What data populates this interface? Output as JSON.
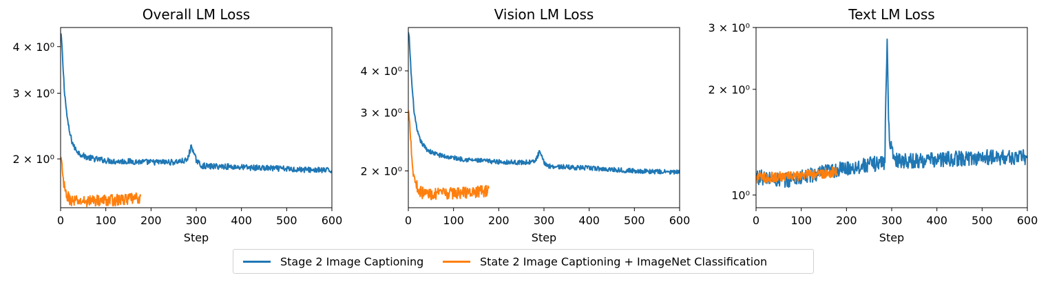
{
  "colors": {
    "stage2": "#1f77b4",
    "stage2_imagenet": "#ff7f0e",
    "axis": "#000000",
    "legend_border": "#d0d0d0"
  },
  "legend": {
    "position": "bottom-center",
    "entries": [
      {
        "label": "Stage 2 Image Captioning",
        "color": "#1f77b4"
      },
      {
        "label": "State 2 Image Captioning + ImageNet Classification",
        "color": "#ff7f0e"
      }
    ]
  },
  "chart_data": [
    {
      "type": "line",
      "title": "Overall LM Loss",
      "xlabel": "Step",
      "ylabel": "",
      "yscale": "log",
      "xlim": [
        0,
        600
      ],
      "ylim": [
        1.48,
        4.5
      ],
      "xticks": [
        0,
        100,
        200,
        300,
        400,
        500,
        600
      ],
      "xtick_labels": [
        "0",
        "100",
        "200",
        "300",
        "400",
        "500",
        "600"
      ],
      "yticks": [
        2,
        3,
        4
      ],
      "ytick_labels": [
        "2 × 10⁰",
        "3 × 10⁰",
        "4 × 10⁰"
      ],
      "series": [
        {
          "name": "Stage 2 Image Captioning",
          "color": "#1f77b4",
          "noise": 0.018,
          "x": [
            0,
            2,
            5,
            8,
            12,
            16,
            20,
            25,
            30,
            40,
            50,
            60,
            75,
            90,
            100,
            120,
            150,
            200,
            250,
            280,
            290,
            295,
            300,
            310,
            330,
            360,
            400,
            450,
            500,
            550,
            600
          ],
          "y": [
            4.3,
            4.2,
            3.6,
            3.1,
            2.75,
            2.5,
            2.35,
            2.23,
            2.15,
            2.08,
            2.04,
            2.02,
            2.0,
            1.99,
            1.98,
            1.97,
            1.97,
            1.96,
            1.96,
            1.98,
            2.18,
            2.05,
            1.99,
            1.92,
            1.91,
            1.91,
            1.9,
            1.89,
            1.88,
            1.87,
            1.86
          ]
        },
        {
          "name": "State 2 Image Captioning + ImageNet Classification",
          "color": "#ff7f0e",
          "noise": 0.035,
          "x": [
            0,
            2,
            4,
            6,
            8,
            10,
            14,
            18,
            22,
            30,
            50,
            80,
            120,
            150,
            178
          ],
          "y": [
            2.0,
            1.95,
            1.85,
            1.75,
            1.68,
            1.63,
            1.6,
            1.57,
            1.55,
            1.54,
            1.54,
            1.55,
            1.55,
            1.56,
            1.57
          ]
        }
      ]
    },
    {
      "type": "line",
      "title": "Vision LM Loss",
      "xlabel": "Step",
      "ylabel": "",
      "yscale": "log",
      "xlim": [
        0,
        600
      ],
      "ylim": [
        1.55,
        5.4
      ],
      "xticks": [
        0,
        100,
        200,
        300,
        400,
        500,
        600
      ],
      "xtick_labels": [
        "0",
        "100",
        "200",
        "300",
        "400",
        "500",
        "600"
      ],
      "yticks": [
        2,
        3,
        4
      ],
      "ytick_labels": [
        "2 × 10⁰",
        "3 × 10⁰",
        "4 × 10⁰"
      ],
      "series": [
        {
          "name": "Stage 2 Image Captioning",
          "color": "#1f77b4",
          "noise": 0.016,
          "x": [
            0,
            2,
            5,
            8,
            12,
            16,
            20,
            25,
            30,
            40,
            50,
            60,
            75,
            90,
            100,
            120,
            150,
            200,
            250,
            280,
            290,
            295,
            300,
            310,
            330,
            360,
            400,
            450,
            500,
            550,
            600
          ],
          "y": [
            5.2,
            5.0,
            4.2,
            3.6,
            3.1,
            2.8,
            2.62,
            2.5,
            2.42,
            2.33,
            2.28,
            2.25,
            2.22,
            2.2,
            2.19,
            2.17,
            2.15,
            2.13,
            2.12,
            2.13,
            2.28,
            2.2,
            2.12,
            2.07,
            2.06,
            2.05,
            2.04,
            2.02,
            2.0,
            1.99,
            1.98
          ]
        },
        {
          "name": "State 2 Image Captioning + ImageNet Classification",
          "color": "#ff7f0e",
          "noise": 0.04,
          "x": [
            0,
            2,
            4,
            6,
            8,
            10,
            14,
            18,
            22,
            30,
            50,
            80,
            120,
            150,
            178
          ],
          "y": [
            3.0,
            2.95,
            2.7,
            2.45,
            2.2,
            2.0,
            1.9,
            1.82,
            1.76,
            1.72,
            1.7,
            1.71,
            1.72,
            1.73,
            1.74
          ]
        }
      ]
    },
    {
      "type": "line",
      "title": "Text LM Loss",
      "xlabel": "Step",
      "ylabel": "",
      "yscale": "log",
      "xlim": [
        0,
        600
      ],
      "ylim": [
        0.92,
        3.0
      ],
      "xticks": [
        0,
        100,
        200,
        300,
        400,
        500,
        600
      ],
      "xtick_labels": [
        "0",
        "100",
        "200",
        "300",
        "400",
        "500",
        "600"
      ],
      "yticks": [
        1,
        2,
        3
      ],
      "ytick_labels": [
        "10⁰",
        "2 × 10⁰",
        "3 × 10⁰"
      ],
      "series": [
        {
          "name": "Stage 2 Image Captioning",
          "color": "#1f77b4",
          "noise": 0.05,
          "x": [
            0,
            30,
            60,
            100,
            150,
            200,
            250,
            285,
            290,
            293,
            296,
            300,
            310,
            350,
            400,
            450,
            500,
            550,
            600
          ],
          "y": [
            1.13,
            1.11,
            1.1,
            1.12,
            1.16,
            1.19,
            1.22,
            1.24,
            2.8,
            1.6,
            1.45,
            1.32,
            1.26,
            1.25,
            1.26,
            1.27,
            1.28,
            1.28,
            1.28
          ]
        },
        {
          "name": "State 2 Image Captioning + ImageNet Classification",
          "color": "#ff7f0e",
          "noise": 0.035,
          "x": [
            0,
            30,
            60,
            90,
            120,
            150,
            178
          ],
          "y": [
            1.12,
            1.12,
            1.13,
            1.13,
            1.14,
            1.15,
            1.17
          ]
        }
      ]
    }
  ]
}
